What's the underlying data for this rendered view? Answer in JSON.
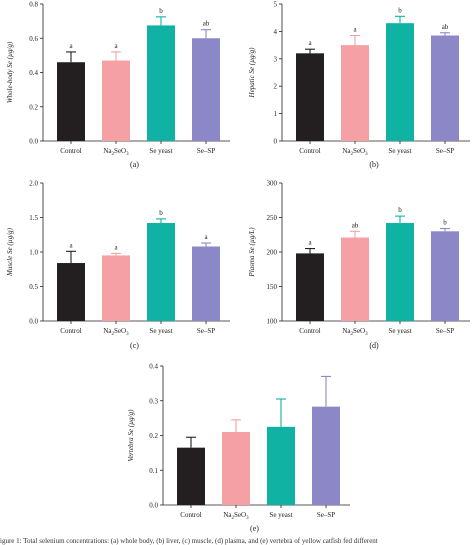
{
  "caption": "igure 1: Total selenium concentrations: (a) whole body, (b) liver, (c) muscle, (d) plasma, and (e) vertebra of yellow catfish fed different",
  "colors": {
    "Control": "#231f20",
    "Na2SeO3": "#f4a0a4",
    "Se yeast": "#10b3a3",
    "Se-SP": "#8c88c7"
  },
  "chart_data": [
    {
      "type": "bar",
      "panel": "(a)",
      "ylabel": "Whole-body Se (µg/g)",
      "categories": [
        "Control",
        "Na2SeO3",
        "Se yeast",
        "Se–SP"
      ],
      "values": [
        0.46,
        0.47,
        0.675,
        0.6
      ],
      "errors": [
        0.06,
        0.05,
        0.05,
        0.05
      ],
      "significance": [
        "a",
        "a",
        "b",
        "ab"
      ],
      "ylim": [
        0,
        0.8
      ],
      "yticks": [
        "0.0",
        "0.2",
        "0.4",
        "0.6",
        "0.8"
      ]
    },
    {
      "type": "bar",
      "panel": "(b)",
      "ylabel": "Hepatic Se (µg/g)",
      "categories": [
        "Control",
        "Na2SeO3",
        "Se yeast",
        "Se–SP"
      ],
      "values": [
        3.2,
        3.5,
        4.3,
        3.85
      ],
      "errors": [
        0.15,
        0.35,
        0.25,
        0.1
      ],
      "significance": [
        "a",
        "a",
        "b",
        "ab"
      ],
      "ylim": [
        0,
        5
      ],
      "yticks": [
        "0",
        "1",
        "2",
        "3",
        "4",
        "5"
      ]
    },
    {
      "type": "bar",
      "panel": "(c)",
      "ylabel": "Muscle Se (µg/g)",
      "categories": [
        "Control",
        "Na2SeO3",
        "Se yeast",
        "Se–SP"
      ],
      "values": [
        0.84,
        0.95,
        1.42,
        1.08
      ],
      "errors": [
        0.17,
        0.03,
        0.06,
        0.05
      ],
      "significance": [
        "a",
        "a",
        "b",
        "a"
      ],
      "ylim": [
        0,
        2
      ],
      "yticks": [
        "0.0",
        "0.5",
        "1.0",
        "1.5",
        "2.0"
      ]
    },
    {
      "type": "bar",
      "panel": "(d)",
      "ylabel": "Plasma Se (µg/L)",
      "categories": [
        "Control",
        "Na2SeO3",
        "Se yeast",
        "Se–SP"
      ],
      "values": [
        198,
        221,
        242,
        230
      ],
      "errors": [
        7,
        9,
        10,
        4
      ],
      "significance": [
        "a",
        "ab",
        "b",
        "b"
      ],
      "ylim": [
        100,
        300
      ],
      "yticks": [
        "100",
        "150",
        "200",
        "250",
        "300"
      ]
    },
    {
      "type": "bar",
      "panel": "(e)",
      "ylabel": "Vertebra Se (µg/g)",
      "categories": [
        "Control",
        "Na2SeO3",
        "Se yeast",
        "Se–SP"
      ],
      "values": [
        0.165,
        0.21,
        0.225,
        0.283
      ],
      "errors": [
        0.03,
        0.035,
        0.08,
        0.087
      ],
      "significance": [
        "",
        "",
        "",
        ""
      ],
      "ylim": [
        0,
        0.4
      ],
      "yticks": [
        "0.0",
        "0.1",
        "0.2",
        "0.3",
        "0.4"
      ]
    }
  ]
}
